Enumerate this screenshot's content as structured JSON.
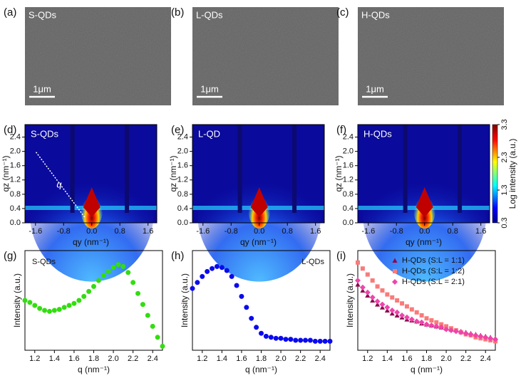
{
  "chart_data": [
    {
      "type": "image",
      "panel": "(a)",
      "label": "S-QDs",
      "scale_bar": "1μm"
    },
    {
      "type": "image",
      "panel": "(b)",
      "label": "L-QDs",
      "scale_bar": "1μm"
    },
    {
      "type": "image",
      "panel": "(c)",
      "label": "H-QDs",
      "scale_bar": "1μm"
    },
    {
      "type": "heatmap",
      "panel": "(d)",
      "label": "S-QDs",
      "annotation": "q",
      "xlabel": "qy (nm⁻¹)",
      "ylabel": "qz (nm⁻¹)",
      "xlim": [
        -1.9,
        1.85
      ],
      "xticks": [
        -1.6,
        -0.8,
        {
          "value": 0,
          "label": "0.0"
        },
        0.8,
        1.6
      ],
      "ylim": [
        0,
        2.75
      ],
      "yticks": [
        {
          "value": 0,
          "label": "0.0"
        },
        0.4,
        0.8,
        1.2,
        1.6,
        {
          "value": 2,
          "label": "2.0"
        },
        2.4
      ]
    },
    {
      "type": "heatmap",
      "panel": "(e)",
      "label": "L-QD",
      "xlabel": "qy (nm⁻¹)",
      "ylabel": "qz (nm⁻¹)",
      "xlim": [
        -1.9,
        1.85
      ],
      "xticks": [
        -1.6,
        -0.8,
        {
          "value": 0,
          "label": "0.0"
        },
        0.8,
        1.6
      ],
      "ylim": [
        0,
        2.75
      ],
      "yticks": [
        {
          "value": 0,
          "label": "0.0"
        },
        0.4,
        0.8,
        1.2,
        1.6,
        {
          "value": 2,
          "label": "2.0"
        },
        2.4
      ]
    },
    {
      "type": "heatmap",
      "panel": "(f)",
      "label": "H-QDs",
      "xlabel": "qy (nm⁻¹)",
      "ylabel": "qz (nm⁻¹)",
      "xlim": [
        -1.9,
        1.85
      ],
      "xticks": [
        -1.6,
        -0.8,
        {
          "value": 0,
          "label": "0.0"
        },
        0.8,
        1.6
      ],
      "ylim": [
        0,
        2.75
      ],
      "yticks": [
        {
          "value": 0,
          "label": "0.0"
        },
        0.4,
        0.8,
        1.2,
        1.6,
        {
          "value": 2,
          "label": "2.0"
        },
        2.4
      ],
      "colorbar": {
        "label": "Log intensity (a.u.)",
        "lim": [
          0.3,
          3.3
        ],
        "ticks": [
          0.3,
          1.3,
          2.3,
          3.3
        ]
      }
    },
    {
      "type": "scatter",
      "panel": "(g)",
      "label": "S-QDs",
      "xlabel": "q (nm⁻¹)",
      "ylabel": "Intensity (a.u.)",
      "xlim": [
        1.1,
        2.5
      ],
      "xticks": [
        1.2,
        1.4,
        1.6,
        1.8,
        {
          "value": 2,
          "label": "2.0"
        },
        2.2,
        2.4
      ],
      "ylim": [
        0,
        1
      ],
      "x": [
        1.1,
        1.15,
        1.2,
        1.25,
        1.3,
        1.35,
        1.4,
        1.45,
        1.5,
        1.55,
        1.6,
        1.65,
        1.7,
        1.75,
        1.8,
        1.85,
        1.9,
        1.95,
        2,
        2.05,
        2.1,
        2.15,
        2.2,
        2.25,
        2.3,
        2.35,
        2.4,
        2.45,
        2.5
      ],
      "series": [
        {
          "color": "#33dd11",
          "marker": "circle",
          "values": [
            0.5,
            0.48,
            0.45,
            0.42,
            0.4,
            0.39,
            0.4,
            0.41,
            0.43,
            0.45,
            0.47,
            0.5,
            0.54,
            0.59,
            0.64,
            0.7,
            0.75,
            0.79,
            0.83,
            0.86,
            0.84,
            0.78,
            0.68,
            0.57,
            0.46,
            0.35,
            0.24,
            0.13,
            0.04
          ]
        }
      ]
    },
    {
      "type": "scatter",
      "panel": "(h)",
      "label": "L-QDs",
      "xlabel": "q (nm⁻¹)",
      "ylabel": "Intensity (a.u.)",
      "xlim": [
        1.1,
        2.5
      ],
      "xticks": [
        1.2,
        1.4,
        1.6,
        1.8,
        {
          "value": 2,
          "label": "2.0"
        },
        2.2,
        2.4
      ],
      "ylim": [
        0,
        1
      ],
      "x": [
        1.1,
        1.15,
        1.2,
        1.25,
        1.3,
        1.35,
        1.4,
        1.45,
        1.5,
        1.55,
        1.6,
        1.65,
        1.7,
        1.75,
        1.8,
        1.85,
        1.9,
        1.95,
        2,
        2.05,
        2.1,
        2.15,
        2.2,
        2.25,
        2.3,
        2.35,
        2.4,
        2.45,
        2.5
      ],
      "series": [
        {
          "color": "#0a0aee",
          "marker": "circle",
          "values": [
            0.62,
            0.68,
            0.74,
            0.79,
            0.82,
            0.84,
            0.83,
            0.8,
            0.74,
            0.65,
            0.54,
            0.43,
            0.32,
            0.23,
            0.17,
            0.14,
            0.13,
            0.12,
            0.12,
            0.11,
            0.11,
            0.1,
            0.1,
            0.1,
            0.1,
            0.09,
            0.09,
            0.09,
            0.09
          ]
        }
      ]
    },
    {
      "type": "scatter",
      "panel": "(i)",
      "xlabel": "q (nm⁻¹)",
      "ylabel": "Intensity (a.u.)",
      "xlim": [
        1.1,
        2.5
      ],
      "xticks": [
        1.2,
        1.4,
        1.6,
        1.8,
        {
          "value": 2,
          "label": "2.0"
        },
        2.2,
        2.4
      ],
      "ylim": [
        0,
        1
      ],
      "x": [
        1.1,
        1.15,
        1.2,
        1.25,
        1.3,
        1.35,
        1.4,
        1.45,
        1.5,
        1.55,
        1.6,
        1.65,
        1.7,
        1.75,
        1.8,
        1.85,
        1.9,
        1.95,
        2,
        2.05,
        2.1,
        2.15,
        2.2,
        2.25,
        2.3,
        2.35,
        2.4,
        2.45,
        2.5
      ],
      "series": [
        {
          "name": "H-QDs (S:L = 1:1)",
          "color": "#8b0a50",
          "marker": "triangle",
          "values": [
            0.66,
            0.6,
            0.55,
            0.5,
            0.46,
            0.43,
            0.4,
            0.37,
            0.35,
            0.33,
            0.31,
            0.3,
            0.29,
            0.27,
            0.26,
            0.25,
            0.24,
            0.23,
            0.22,
            0.21,
            0.2,
            0.19,
            0.18,
            0.17,
            0.16,
            0.15,
            0.14,
            0.13,
            0.12
          ]
        },
        {
          "name": "H-QDs (S:L = 1:2)",
          "color": "#fa7a7a",
          "marker": "square",
          "values": [
            0.88,
            0.82,
            0.76,
            0.7,
            0.64,
            0.6,
            0.56,
            0.53,
            0.5,
            0.47,
            0.44,
            0.41,
            0.38,
            0.35,
            0.32,
            0.3,
            0.28,
            0.26,
            0.24,
            0.22,
            0.2,
            0.18,
            0.16,
            0.15,
            0.13,
            0.12,
            0.11,
            0.1,
            0.09
          ]
        },
        {
          "name": "H-QDs (S:L = 2:1)",
          "color": "#ee44aa",
          "marker": "diamond",
          "values": [
            0.7,
            0.63,
            0.58,
            0.53,
            0.49,
            0.46,
            0.43,
            0.4,
            0.38,
            0.35,
            0.33,
            0.31,
            0.29,
            0.28,
            0.26,
            0.25,
            0.24,
            0.23,
            0.21,
            0.2,
            0.19,
            0.18,
            0.17,
            0.16,
            0.15,
            0.14,
            0.13,
            0.12,
            0.11
          ]
        }
      ]
    }
  ]
}
